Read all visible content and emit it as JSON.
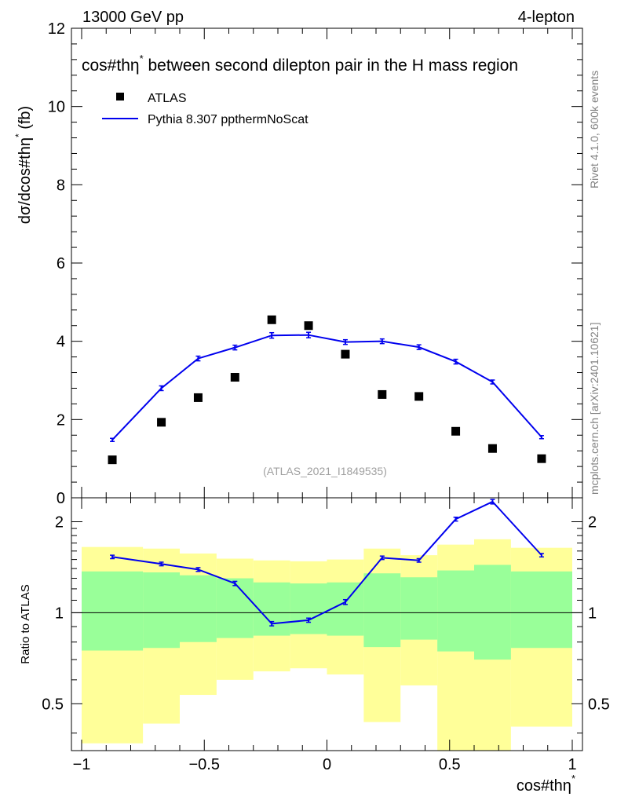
{
  "header": {
    "energy_label": "13000 GeV pp",
    "process_label": "4-lepton",
    "title": "cos#thη",
    "title_sup": "*",
    "title_rest": " between second dilepton pair in the H mass region",
    "watermark": "(ATLAS_2021_I1849535)",
    "side_label_rivet": "Rivet 4.1.0,  600k events",
    "side_label_site": "mcplots.cern.ch [arXiv:2401.10621]"
  },
  "legend": {
    "data_label": "ATLAS",
    "mc_label": "Pythia 8.307 ppthermNoScat"
  },
  "colors": {
    "data": "#000000",
    "mc": "#0000ee",
    "band_inner": "#99ff99",
    "band_outer": "#ffff99"
  },
  "chart_data": [
    {
      "type": "scatter",
      "panel": "main",
      "ylabel": "dσ/dcos#thη",
      "ylabel_sup": "*",
      "ylabel_unit": " (fb)",
      "xlim": [
        -1,
        1
      ],
      "ylim": [
        0,
        12
      ],
      "yticks": [
        0,
        2,
        4,
        6,
        8,
        10,
        12
      ],
      "ytick_labels": [
        "0",
        "2",
        "4",
        "6",
        "8",
        "10",
        "12"
      ],
      "bin_edges": [
        -1,
        -0.75,
        -0.6,
        -0.45,
        -0.3,
        -0.15,
        0,
        0.15,
        0.3,
        0.45,
        0.6,
        0.75,
        1
      ],
      "series": [
        {
          "name": "ATLAS",
          "style": "markers",
          "x": [
            -0.875,
            -0.675,
            -0.525,
            -0.375,
            -0.225,
            -0.075,
            0.075,
            0.225,
            0.375,
            0.525,
            0.675,
            0.875
          ],
          "values": [
            0.97,
            1.93,
            2.56,
            3.08,
            4.55,
            4.4,
            3.67,
            2.64,
            2.59,
            1.7,
            1.26,
            1.0
          ]
        },
        {
          "name": "Pythia 8.307 ppthermNoScat",
          "style": "line",
          "x": [
            -0.875,
            -0.675,
            -0.525,
            -0.375,
            -0.225,
            -0.075,
            0.075,
            0.225,
            0.375,
            0.525,
            0.675,
            0.875
          ],
          "values": [
            1.48,
            2.8,
            3.56,
            3.84,
            4.15,
            4.16,
            3.98,
            4.0,
            3.85,
            3.48,
            2.96,
            1.55
          ],
          "errors": [
            0.04,
            0.06,
            0.06,
            0.06,
            0.07,
            0.07,
            0.06,
            0.06,
            0.06,
            0.06,
            0.05,
            0.04
          ]
        }
      ]
    },
    {
      "type": "line",
      "panel": "ratio",
      "ylabel": "Ratio to ATLAS",
      "xlabel": "cos#thη",
      "xlabel_sup": "*",
      "xlim": [
        -1,
        1
      ],
      "yscale": "log",
      "ylim": [
        0.35,
        2.4
      ],
      "reference": 1,
      "yticks": [
        0.5,
        1,
        2
      ],
      "ytick_labels": [
        "0.5",
        "1",
        "2"
      ],
      "xticks": [
        -1,
        -0.5,
        0,
        0.5,
        1
      ],
      "xtick_labels": [
        "−1",
        "−0.5",
        "0",
        "0.5",
        "1"
      ],
      "bin_edges": [
        -1,
        -0.75,
        -0.6,
        -0.45,
        -0.3,
        -0.15,
        0,
        0.15,
        0.3,
        0.45,
        0.6,
        0.75,
        1
      ],
      "bands": {
        "inner_low": [
          0.75,
          0.765,
          0.8,
          0.825,
          0.84,
          0.85,
          0.84,
          0.77,
          0.815,
          0.745,
          0.7,
          0.765
        ],
        "inner_high": [
          1.37,
          1.36,
          1.33,
          1.3,
          1.26,
          1.25,
          1.26,
          1.35,
          1.31,
          1.38,
          1.44,
          1.37
        ],
        "outer_low": [
          0.37,
          0.43,
          0.535,
          0.6,
          0.64,
          0.655,
          0.625,
          0.435,
          0.575,
          0.3,
          0.3,
          0.42
        ],
        "outer_high": [
          1.65,
          1.63,
          1.57,
          1.51,
          1.49,
          1.48,
          1.5,
          1.63,
          1.55,
          1.68,
          1.75,
          1.64
        ]
      },
      "series": [
        {
          "name": "Pythia 8.307 ppthermNoScat",
          "x": [
            -0.875,
            -0.675,
            -0.525,
            -0.375,
            -0.225,
            -0.075,
            0.075,
            0.225,
            0.375,
            0.525,
            0.675,
            0.875
          ],
          "values": [
            1.53,
            1.45,
            1.39,
            1.25,
            0.92,
            0.945,
            1.085,
            1.52,
            1.49,
            2.04,
            2.33,
            1.55
          ],
          "errors": [
            0.02,
            0.02,
            0.02,
            0.02,
            0.015,
            0.015,
            0.02,
            0.02,
            0.02,
            0.03,
            0.04,
            0.02
          ]
        }
      ]
    }
  ]
}
